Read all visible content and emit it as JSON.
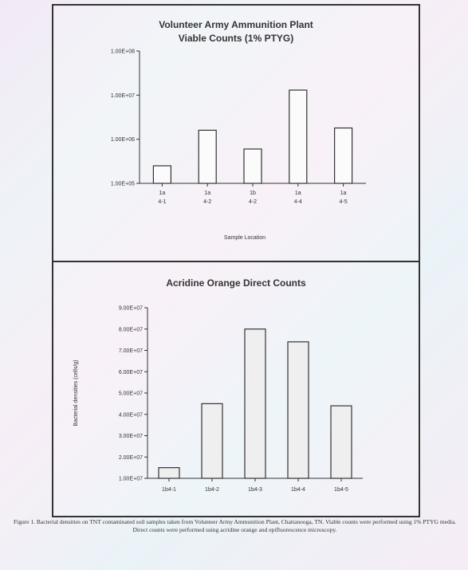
{
  "chart_data": [
    {
      "type": "bar",
      "title": "Volunteer Army Ammunition Plant",
      "subtitle": "Viable Counts (1% PTYG)",
      "xlabel": "Sample Location",
      "ylabel": "",
      "y_scale": "log",
      "ylim": [
        100000.0,
        100000000.0
      ],
      "y_ticks": [
        "1.00E+08",
        "1.00E+07",
        "1.00E+06",
        "1.00E+05"
      ],
      "y_tick_values": [
        100000000.0,
        10000000.0,
        1000000.0,
        100000.0
      ],
      "categories": [
        "1a\n4-1",
        "1a\n4-2",
        "1b\n4-2",
        "1a\n4-4",
        "1a\n4-5"
      ],
      "values": [
        250000.0,
        1600000.0,
        600000.0,
        13000000.0,
        1800000.0
      ]
    },
    {
      "type": "bar",
      "title": "Acridine Orange Direct Counts",
      "xlabel": "",
      "ylabel": "Bacterial densities (cells/g)",
      "ylim": [
        10000000.0,
        90000000.0
      ],
      "y_ticks": [
        "9.00E+07",
        "8.00E+07",
        "7.00E+07",
        "6.00E+07",
        "5.00E+07",
        "4.00E+07",
        "3.00E+07",
        "2.00E+07",
        "1.00E+07"
      ],
      "y_tick_values": [
        90000000.0,
        80000000.0,
        70000000.0,
        60000000.0,
        50000000.0,
        40000000.0,
        30000000.0,
        20000000.0,
        10000000.0
      ],
      "categories": [
        "1b4-1",
        "1b4-2",
        "1b4-3",
        "1b4-4",
        "1b4-5"
      ],
      "values": [
        15000000.0,
        45000000.0,
        80000000.0,
        74000000.0,
        44000000.0
      ]
    }
  ],
  "caption": "Figure 1. Bacterial densities on TNT contaminated soil samples taken from Volunteer Army Ammunition Plant, Chattanooga, TN. Viable counts were performed using 1% PTYG media. Direct counts were performed using acridine orange and epifluorescence microscopy."
}
